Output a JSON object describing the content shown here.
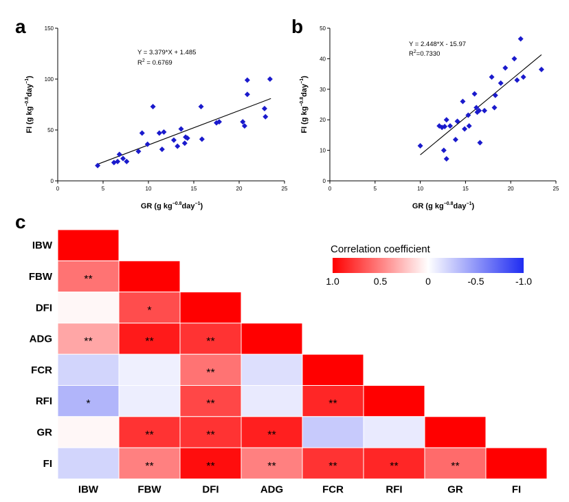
{
  "chart_data": [
    {
      "type": "scatter",
      "panel": "a",
      "xlabel": "GR (g kg",
      "xlabel_sup": "−0.8",
      "xlabel_tail": "day",
      "xlabel_sup2": "−1",
      "xlabel_end": ")",
      "ylabel": "FI (g kg",
      "ylabel_sup": "−0.8",
      "ylabel_tail": "day",
      "ylabel_sup2": "−1",
      "ylabel_end": ")",
      "xlim": [
        0,
        25
      ],
      "ylim": [
        0,
        150
      ],
      "xticks": [
        0,
        5,
        10,
        15,
        20,
        25
      ],
      "yticks": [
        0,
        50,
        100,
        150
      ],
      "equation": "Y = 3.379*X + 1.485",
      "r2_label": "R",
      "r2_sup": "2",
      "r2_value": " = 0.6769",
      "fit": {
        "slope": 3.379,
        "intercept": 1.485,
        "x_range": [
          4.3,
          23.5
        ]
      },
      "marker_color": "#1a1acc",
      "x": [
        4.4,
        6.2,
        6.6,
        6.8,
        7.2,
        7.6,
        8.9,
        9.3,
        9.9,
        10.5,
        11.2,
        11.5,
        11.7,
        12.8,
        13.2,
        13.6,
        14.0,
        14.1,
        14.3,
        15.8,
        15.9,
        17.5,
        17.8,
        20.4,
        20.6,
        20.9,
        20.9,
        22.8,
        22.9,
        23.4
      ],
      "y": [
        15,
        18,
        19,
        26,
        22,
        19,
        29,
        47,
        36,
        73,
        47,
        31,
        48,
        40,
        34,
        51,
        37,
        43,
        42,
        73,
        41,
        57,
        58,
        58,
        54,
        85,
        99,
        71,
        63,
        100
      ]
    },
    {
      "type": "scatter",
      "panel": "b",
      "xlabel": "GR (g kg",
      "xlabel_sup": "−0.8",
      "xlabel_tail": "day",
      "xlabel_sup2": "−1",
      "xlabel_end": ")",
      "ylabel": "FI (g kg",
      "ylabel_sup": "−0.8",
      "ylabel_tail": "day",
      "ylabel_sup2": "−1",
      "ylabel_end": ")",
      "xlim": [
        0,
        25
      ],
      "ylim": [
        0,
        50
      ],
      "xticks": [
        0,
        5,
        10,
        15,
        20,
        25
      ],
      "yticks": [
        0,
        10,
        20,
        30,
        40,
        50
      ],
      "equation": "Y = 2.448*X - 15.97",
      "r2_label": "R",
      "r2_sup": "2",
      "r2_value": "=0.7330",
      "fit": {
        "slope": 2.448,
        "intercept": -15.97,
        "x_range": [
          10.0,
          23.4
        ]
      },
      "marker_color": "#1a1acc",
      "x": [
        10.0,
        12.1,
        12.4,
        12.6,
        12.7,
        12.9,
        12.9,
        13.3,
        13.9,
        14.1,
        14.7,
        14.9,
        15.3,
        15.4,
        16.0,
        16.2,
        16.3,
        16.5,
        16.6,
        17.1,
        17.9,
        18.2,
        18.3,
        18.9,
        19.4,
        20.4,
        20.7,
        21.1,
        21.4,
        23.4
      ],
      "y": [
        11.5,
        18.0,
        17.5,
        10.0,
        17.8,
        20.0,
        7.2,
        18.0,
        13.5,
        19.5,
        26.0,
        17.0,
        21.5,
        18.0,
        28.5,
        24.0,
        22.5,
        23.0,
        12.5,
        23.0,
        34.0,
        24.0,
        28.0,
        32.0,
        37.0,
        40.0,
        33.0,
        46.5,
        34.0,
        36.5
      ]
    },
    {
      "type": "heatmap",
      "panel": "c",
      "rows": [
        "IBW",
        "FBW",
        "DFI",
        "ADG",
        "FCR",
        "RFI",
        "GR",
        "FI"
      ],
      "cols": [
        "IBW",
        "FBW",
        "DFI",
        "ADG",
        "FCR",
        "RFI",
        "GR",
        "FI"
      ],
      "values": [
        [
          1.0
        ],
        [
          0.55,
          1.0
        ],
        [
          0.03,
          0.7,
          1.0
        ],
        [
          0.35,
          0.9,
          0.8,
          1.0
        ],
        [
          -0.2,
          -0.07,
          0.55,
          -0.15,
          1.0
        ],
        [
          -0.35,
          -0.08,
          0.72,
          -0.1,
          0.85,
          1.0
        ],
        [
          0.03,
          0.8,
          0.8,
          0.88,
          -0.25,
          -0.1,
          1.0
        ],
        [
          -0.2,
          0.5,
          0.95,
          0.5,
          0.8,
          0.85,
          0.58,
          1.0
        ]
      ],
      "significance": [
        [
          ""
        ],
        [
          "**",
          ""
        ],
        [
          "",
          "*",
          ""
        ],
        [
          "**",
          "**",
          "**",
          ""
        ],
        [
          "",
          "",
          "**",
          "",
          ""
        ],
        [
          "*",
          "",
          "**",
          "",
          "**",
          ""
        ],
        [
          "",
          "**",
          "**",
          "**",
          "",
          "",
          ""
        ],
        [
          "",
          "**",
          "**",
          "**",
          "**",
          "**",
          "**",
          ""
        ]
      ],
      "legend": {
        "title": "Correlation coefficient",
        "ticks": [
          "1.0",
          "0.5",
          "0",
          "-0.5",
          "-1.0"
        ],
        "range": [
          1.0,
          -1.0
        ],
        "color_pos": "#ff0000",
        "color_zero": "#ffffff",
        "color_neg": "#1f2cf2"
      }
    }
  ],
  "panels": {
    "a": "a",
    "b": "b",
    "c": "c"
  }
}
